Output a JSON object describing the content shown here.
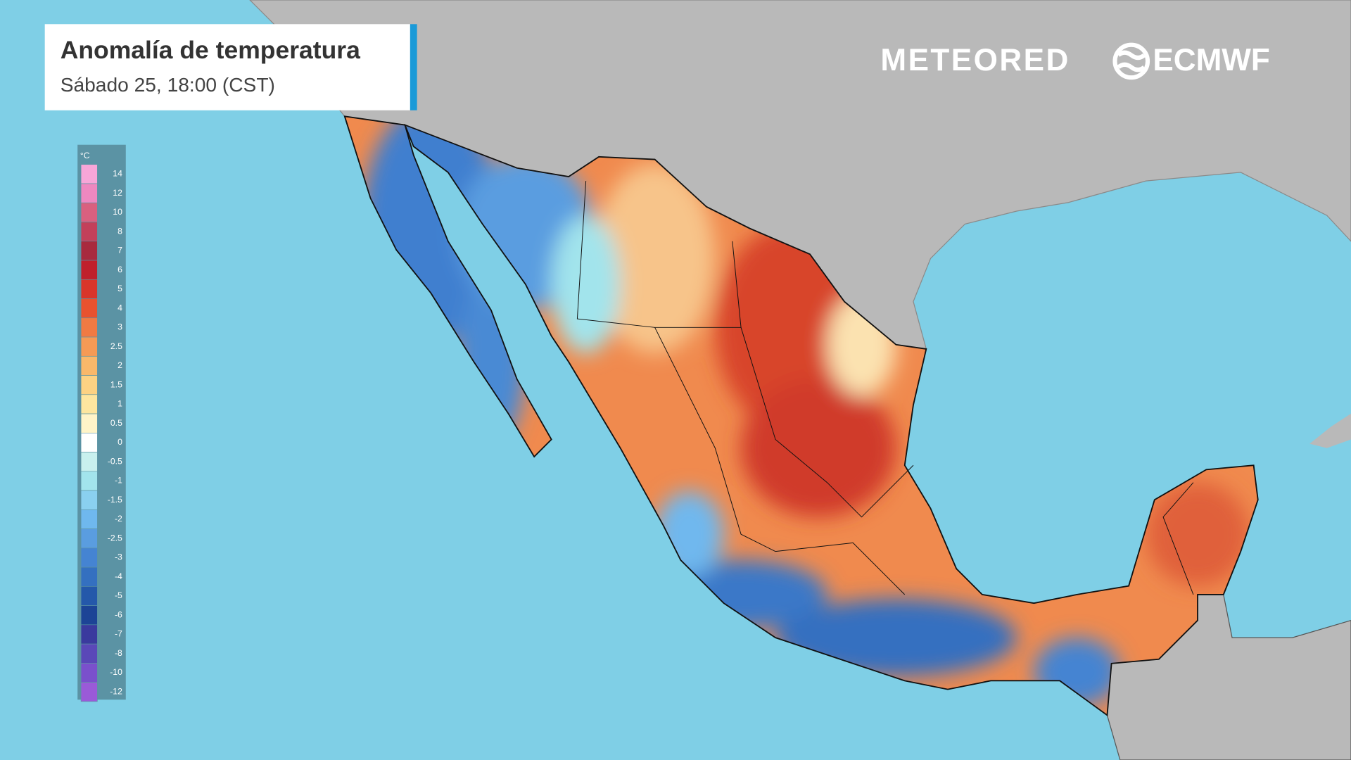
{
  "header": {
    "title": "Anomalía de temperatura",
    "subtitle": "Sábado 25, 18:00 (CST)"
  },
  "logos": {
    "meteored": "METEORED",
    "ecmwf": "ECMWF"
  },
  "legend": {
    "unit": "°C",
    "items": [
      {
        "label": 14,
        "color": "#f7a6d8"
      },
      {
        "label": 12,
        "color": "#ee88c0"
      },
      {
        "label": 10,
        "color": "#d9607f"
      },
      {
        "label": 8,
        "color": "#c3405a"
      },
      {
        "label": 7,
        "color": "#a82a3e"
      },
      {
        "label": 6,
        "color": "#c0202c"
      },
      {
        "label": 5,
        "color": "#d9352a"
      },
      {
        "label": 4,
        "color": "#e8522f"
      },
      {
        "label": 3,
        "color": "#f07a43"
      },
      {
        "label": 2.5,
        "color": "#f59a55"
      },
      {
        "label": 2,
        "color": "#f9b86a"
      },
      {
        "label": 1.5,
        "color": "#fcd283"
      },
      {
        "label": 1,
        "color": "#fde69f"
      },
      {
        "label": 0.5,
        "color": "#fff4c8"
      },
      {
        "label": 0,
        "color": "#ffffff"
      },
      {
        "label": -0.5,
        "color": "#c8f0ee"
      },
      {
        "label": -1,
        "color": "#a2e4ec"
      },
      {
        "label": -1.5,
        "color": "#8ad0f0"
      },
      {
        "label": -2,
        "color": "#6fb8ee"
      },
      {
        "label": -2.5,
        "color": "#5a9de0"
      },
      {
        "label": -3,
        "color": "#4584d2"
      },
      {
        "label": -4,
        "color": "#3470c0"
      },
      {
        "label": -5,
        "color": "#2458aa"
      },
      {
        "label": -6,
        "color": "#1c4496"
      },
      {
        "label": -7,
        "color": "#3a3a9e"
      },
      {
        "label": -8,
        "color": "#5a48b8"
      },
      {
        "label": -10,
        "color": "#7a50cc"
      },
      {
        "label": -12,
        "color": "#9a5ad8"
      }
    ]
  }
}
